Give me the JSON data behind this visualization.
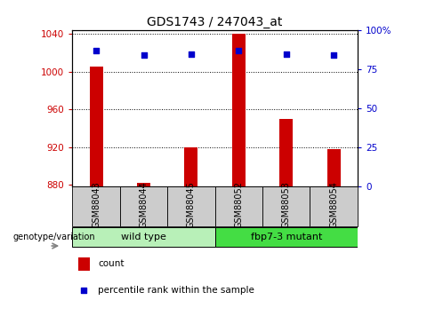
{
  "title": "GDS1743 / 247043_at",
  "samples": [
    "GSM88043",
    "GSM88044",
    "GSM88045",
    "GSM88052",
    "GSM88053",
    "GSM88054"
  ],
  "counts": [
    1005,
    882,
    920,
    1040,
    950,
    918
  ],
  "percentiles": [
    87,
    84,
    85,
    87,
    85,
    84
  ],
  "ylim_left": [
    878,
    1044
  ],
  "ylim_right": [
    0,
    100
  ],
  "yticks_left": [
    880,
    920,
    960,
    1000,
    1040
  ],
  "yticks_right": [
    0,
    25,
    50,
    75,
    100
  ],
  "yticklabels_right": [
    "0",
    "25",
    "50",
    "75",
    "100%"
  ],
  "groups": [
    {
      "label": "wild type",
      "color": "#b8f0b8",
      "start": 0,
      "end": 2
    },
    {
      "label": "fbp7-3 mutant",
      "color": "#44dd44",
      "start": 3,
      "end": 5
    }
  ],
  "bar_color": "#cc0000",
  "dot_color": "#0000cc",
  "bar_width": 0.28,
  "tick_color_left": "#cc0000",
  "tick_color_right": "#0000cc",
  "xlabel_area_color": "#cccccc",
  "legend_count_label": "count",
  "legend_pct_label": "percentile rank within the sample",
  "genotype_label": "genotype/variation"
}
